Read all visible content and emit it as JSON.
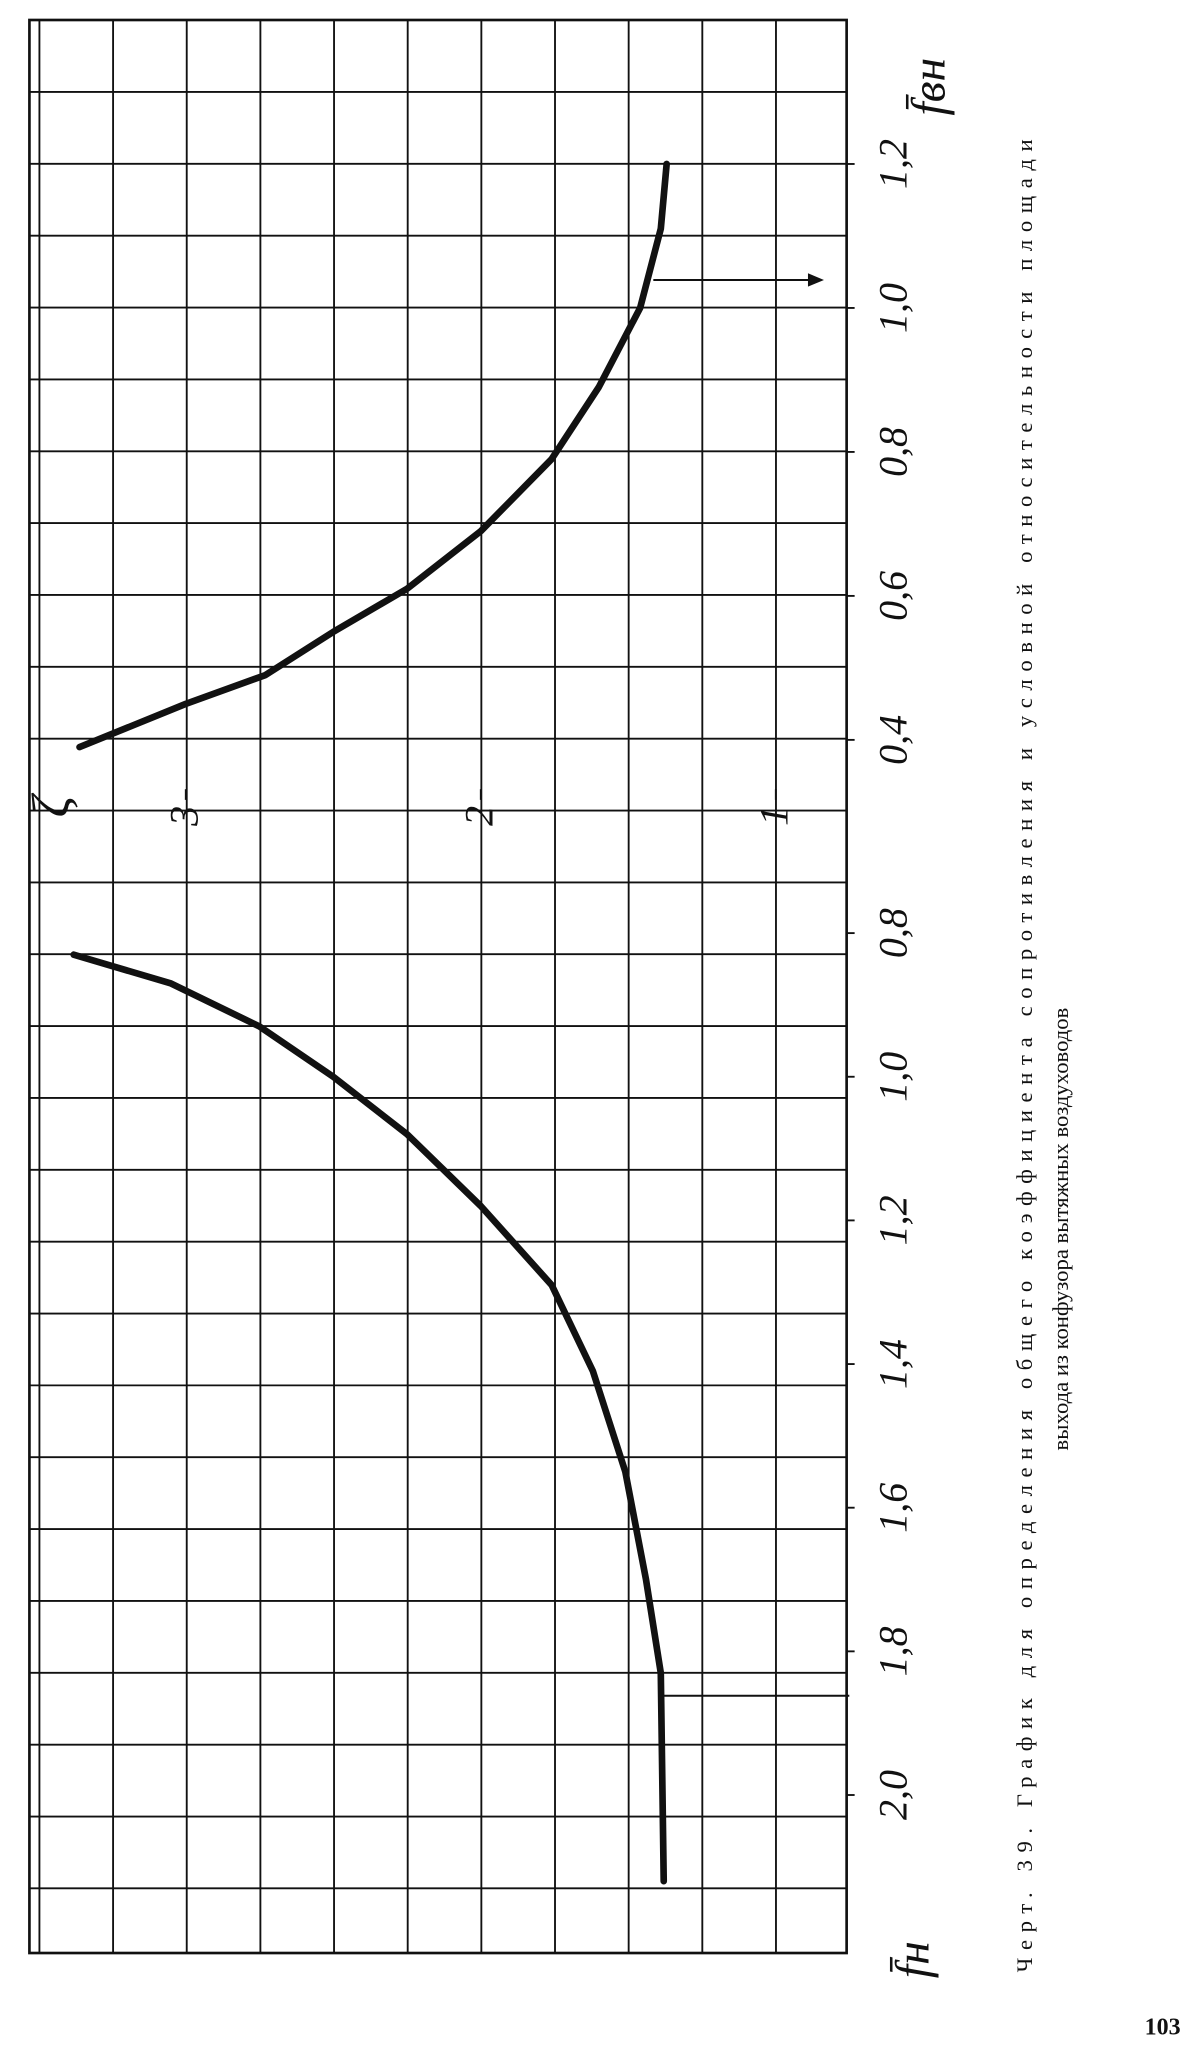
{
  "chart_data": [
    {
      "type": "line",
      "x_label": "f̄вн",
      "y_label": "ζ",
      "color": "#111111",
      "grid": true,
      "x": [
        0.39,
        0.45,
        0.49,
        0.55,
        0.61,
        0.69,
        0.79,
        0.89,
        1.0,
        1.11,
        1.2
      ],
      "values": [
        3.36,
        3.0,
        2.73,
        2.5,
        2.25,
        2.0,
        1.76,
        1.6,
        1.46,
        1.39,
        1.37
      ],
      "xlim": [
        0.35,
        1.4
      ],
      "xticks": [
        {
          "value": 0.4,
          "label": "0,4"
        },
        {
          "value": 0.6,
          "label": "0,6"
        },
        {
          "value": 0.8,
          "label": "0,8"
        },
        {
          "value": 1.0,
          "label": "1,0"
        },
        {
          "value": 1.2,
          "label": "1,2"
        }
      ],
      "ylim": [
        0.76,
        3.53
      ],
      "yticks": [
        1,
        2,
        3
      ]
    },
    {
      "type": "line",
      "x_label": "f̄н",
      "color": "#111111",
      "grid": true,
      "x": [
        0.83,
        0.87,
        0.93,
        1.0,
        1.08,
        1.18,
        1.29,
        1.41,
        1.55,
        1.7,
        1.83,
        2.12
      ],
      "values": [
        3.38,
        3.05,
        2.75,
        2.5,
        2.25,
        2.0,
        1.76,
        1.62,
        1.51,
        1.44,
        1.39,
        1.38
      ],
      "xlim": [
        0.75,
        2.22
      ],
      "xticks": [
        {
          "value": 0.8,
          "label": "0,8"
        },
        {
          "value": 1.0,
          "label": "1,0"
        },
        {
          "value": 1.2,
          "label": "1,2"
        },
        {
          "value": 1.4,
          "label": "1,4"
        },
        {
          "value": 1.6,
          "label": "1,6"
        },
        {
          "value": 1.8,
          "label": "1,8"
        },
        {
          "value": 2.0,
          "label": "2,0"
        }
      ],
      "ylim": [
        0.76,
        3.53
      ]
    }
  ],
  "caption": {
    "line1": "Черт. 39. График для определения общего коэффициента сопротивления и условной относительности площади",
    "line2": "выхода из конфузора вытяжных воздуховодов"
  },
  "page_number": "103"
}
